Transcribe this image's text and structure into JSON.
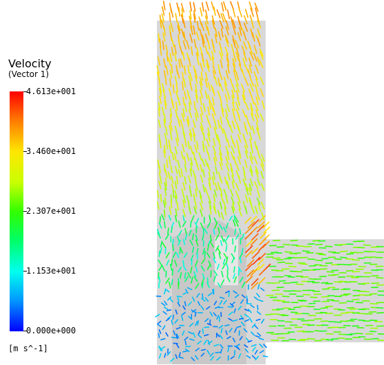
{
  "legend": {
    "title": "Velocity",
    "subtitle": "(Vector 1)",
    "units": "[m s^-1]",
    "ticks": [
      "4.613e+001",
      "3.460e+001",
      "2.307e+001",
      "1.153e+001",
      "0.000e+000"
    ]
  },
  "colors": {
    "domain_fill": "#d8d8d8",
    "max": "#ff0000",
    "min": "#0000ff"
  }
}
